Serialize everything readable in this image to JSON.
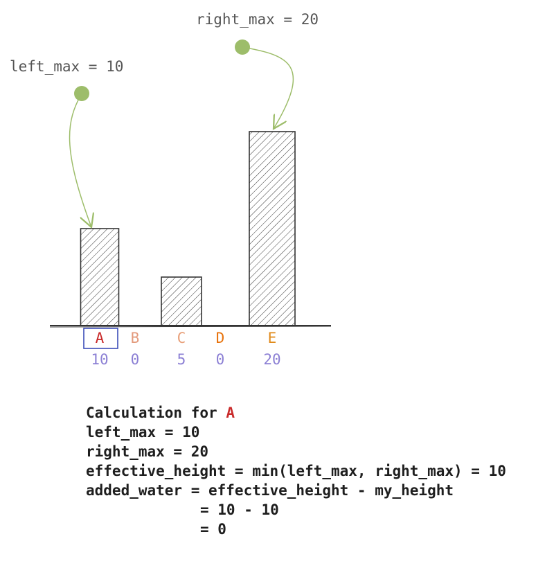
{
  "annotations": {
    "left": "left_max = 10",
    "right": "right_max = 20"
  },
  "bars": [
    {
      "label": "A",
      "value": 10,
      "color": "#c92a2a"
    },
    {
      "label": "B",
      "value": 0,
      "color": "#e39a7c"
    },
    {
      "label": "C",
      "value": 5,
      "color": "#e8a07a"
    },
    {
      "label": "D",
      "value": 0,
      "color": "#e8730c"
    },
    {
      "label": "E",
      "value": 20,
      "color": "#e08a1a"
    }
  ],
  "value_color": "#8b7fd4",
  "calculation": {
    "title": "Calculation for",
    "target": "A",
    "lines": [
      "left_max = 10",
      "right_max = 20",
      "effective_height = min(left_max, right_max) = 10",
      "added_water = effective_height - my_height",
      "= 10 - 10",
      "= 0"
    ]
  }
}
